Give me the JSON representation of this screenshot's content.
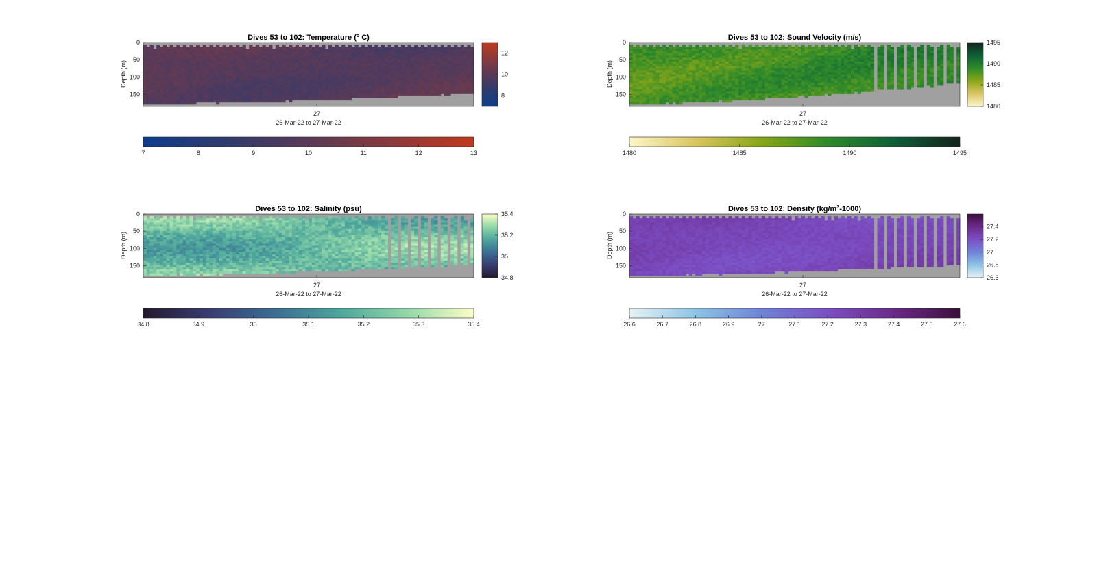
{
  "chart_data": [
    {
      "type": "heatmap",
      "variable": "temperature",
      "title": "Dives 53 to 102: Temperature (",
      "title_sup": "o",
      "title_tail": " C)",
      "ylabel": "Depth (m)",
      "xtick": "27",
      "xlabel": "26-Mar-22 to 27-Mar-22",
      "ylim": [
        0,
        185
      ],
      "yticks": [
        "0",
        "50",
        "100",
        "150"
      ],
      "clim": [
        7,
        13
      ],
      "colorbar_ticks": [
        "8",
        "10",
        "12"
      ],
      "hcolorbar_ticks": [
        "7",
        "8",
        "9",
        "10",
        "11",
        "12",
        "13"
      ],
      "colormap": [
        "#0d3e8a",
        "#2f3b6e",
        "#5a3a58",
        "#8a3a3c",
        "#c0391d"
      ],
      "dives": 50,
      "value_range": [
        9.2,
        10.6
      ],
      "bottom_depth_start": 178,
      "bottom_depth_end": 148
    },
    {
      "type": "heatmap",
      "variable": "sound_velocity",
      "title": "Dives 53 to 102: Sound Velocity (m/s)",
      "title_sup": "",
      "title_tail": "",
      "ylabel": "Depth (m)",
      "xtick": "27",
      "xlabel": "26-Mar-22 to 27-Mar-22",
      "ylim": [
        0,
        185
      ],
      "yticks": [
        "0",
        "50",
        "100",
        "150"
      ],
      "clim": [
        1480,
        1495
      ],
      "colorbar_ticks": [
        "1480",
        "1485",
        "1490",
        "1495"
      ],
      "hcolorbar_ticks": [
        "1480",
        "1485",
        "1490",
        "1495"
      ],
      "colormap": [
        "#fdf7c8",
        "#dac463",
        "#88a617",
        "#2e8a2a",
        "#0e5f37",
        "#15241c"
      ],
      "dives": 50,
      "value_range": [
        1486.5,
        1490.5
      ],
      "bottom_depth_start": 178,
      "bottom_depth_end": 118
    },
    {
      "type": "heatmap",
      "variable": "salinity",
      "title": "Dives 53 to 102: Salinity (psu)",
      "title_sup": "",
      "title_tail": "",
      "ylabel": "Depth (m)",
      "xtick": "27",
      "xlabel": "26-Mar-22 to 27-Mar-22",
      "ylim": [
        0,
        185
      ],
      "yticks": [
        "0",
        "50",
        "100",
        "150"
      ],
      "clim": [
        34.8,
        35.4
      ],
      "colorbar_ticks": [
        "34.8",
        "35",
        "35.2",
        "35.4"
      ],
      "hcolorbar_ticks": [
        "34.8",
        "34.9",
        "35",
        "35.1",
        "35.2",
        "35.3",
        "35.4"
      ],
      "colormap": [
        "#241a2f",
        "#393d72",
        "#3c6e94",
        "#4ea79d",
        "#93d8a8",
        "#fdfdc9"
      ],
      "dives": 50,
      "value_range": [
        35.1,
        35.32
      ],
      "bottom_depth_start": 178,
      "bottom_depth_end": 148
    },
    {
      "type": "heatmap",
      "variable": "density",
      "title": "Dives 53 to 102: Density (kg/m",
      "title_sup": "3",
      "title_tail": "-1000)",
      "ylabel": "Depth (m)",
      "xtick": "27",
      "xlabel": "26-Mar-22 to 27-Mar-22",
      "ylim": [
        0,
        185
      ],
      "yticks": [
        "0",
        "50",
        "100",
        "150"
      ],
      "clim": [
        26.6,
        27.6
      ],
      "colorbar_ticks": [
        "26.6",
        "26.8",
        "27",
        "27.2",
        "27.4"
      ],
      "hcolorbar_ticks": [
        "26.6",
        "26.7",
        "26.8",
        "26.9",
        "27",
        "27.1",
        "27.2",
        "27.3",
        "27.4",
        "27.5",
        "27.6"
      ],
      "colormap": [
        "#e6f2f5",
        "#8dc4e4",
        "#6f83d8",
        "#7c4fc5",
        "#6b2a8a",
        "#3b0f3c"
      ],
      "dives": 50,
      "value_range": [
        27.18,
        27.32
      ],
      "bottom_depth_start": 178,
      "bottom_depth_end": 148
    }
  ]
}
